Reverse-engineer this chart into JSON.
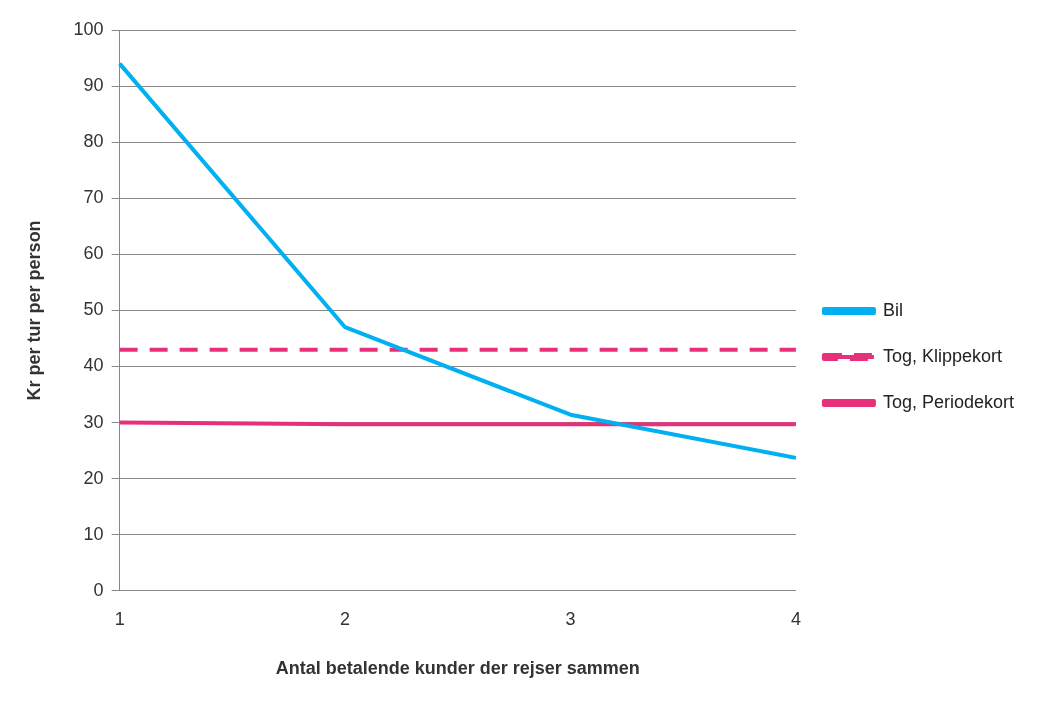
{
  "chart_data": {
    "type": "line",
    "xlabel": "Antal betalende kunder der rejser sammen",
    "ylabel": "Kr per tur per person",
    "categories": [
      "1",
      "2",
      "3",
      "4"
    ],
    "series": [
      {
        "name": "Bil",
        "color": "#00b0f0",
        "values": [
          94,
          47,
          31.4,
          23.7
        ],
        "line_style": "solid"
      },
      {
        "name": "Tog, Klippekort",
        "color": "#e8307a",
        "values": [
          43,
          43,
          43,
          43
        ],
        "line_style": "dashed"
      },
      {
        "name": "Tog, Periodekort",
        "color": "#e8307a",
        "values": [
          30,
          29.7,
          29.7,
          29.7
        ],
        "line_style": "solid"
      }
    ],
    "ylim": [
      0,
      100
    ],
    "yticks": [
      0,
      10,
      20,
      30,
      40,
      50,
      60,
      70,
      80,
      90,
      100
    ],
    "grid": "y",
    "legend": "right",
    "marker": "none"
  }
}
